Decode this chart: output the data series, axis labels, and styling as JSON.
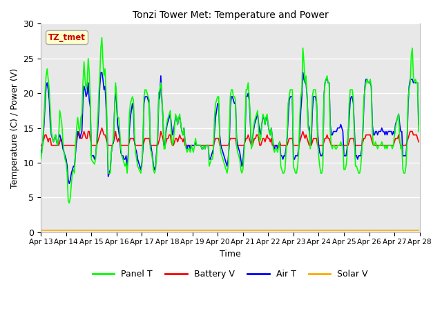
{
  "title": "Tonzi Tower Met: Temperature and Power",
  "xlabel": "Time",
  "ylabel": "Temperature (C) / Power (V)",
  "ylim": [
    0,
    30
  ],
  "xtick_labels": [
    "Apr 13",
    "Apr 14",
    "Apr 15",
    "Apr 16",
    "Apr 17",
    "Apr 18",
    "Apr 19",
    "Apr 20",
    "Apr 21",
    "Apr 22",
    "Apr 23",
    "Apr 24",
    "Apr 25",
    "Apr 26",
    "Apr 27",
    "Apr 28"
  ],
  "ytick_positions": [
    0,
    5,
    10,
    15,
    20,
    25,
    30
  ],
  "bg_color": "#e8e8e8",
  "fig_color": "#ffffff",
  "annotation_text": "TZ_tmet",
  "annotation_color": "#cc0000",
  "annotation_bg": "#ffffcc",
  "annotation_border": "#aaaaaa",
  "panel_t_color": "#00ff00",
  "battery_v_color": "#ff0000",
  "air_t_color": "#0000ff",
  "solar_v_color": "#ffaa00",
  "line_width": 1.2,
  "panel_t": [
    10.5,
    11.5,
    13.5,
    16.5,
    20.0,
    22.5,
    23.5,
    22.0,
    20.5,
    17.5,
    14.5,
    13.5,
    13.0,
    13.5,
    14.0,
    13.0,
    12.5,
    14.0,
    17.5,
    16.5,
    15.5,
    13.0,
    11.5,
    10.5,
    10.0,
    8.5,
    4.5,
    4.2,
    5.0,
    7.0,
    8.5,
    9.0,
    8.5,
    12.5,
    15.0,
    16.5,
    15.0,
    14.5,
    16.5,
    17.0,
    21.5,
    24.5,
    22.0,
    20.5,
    21.5,
    25.0,
    23.0,
    19.0,
    10.5,
    10.2,
    10.0,
    9.8,
    10.5,
    13.0,
    16.0,
    19.5,
    22.5,
    26.5,
    28.0,
    24.5,
    22.5,
    23.5,
    20.0,
    15.5,
    8.5,
    8.5,
    8.5,
    11.5,
    12.5,
    13.5,
    17.5,
    21.5,
    19.5,
    16.5,
    16.5,
    14.5,
    12.0,
    11.0,
    10.5,
    10.0,
    9.5,
    10.0,
    8.5,
    10.5,
    16.5,
    18.5,
    19.0,
    19.5,
    19.0,
    14.0,
    11.5,
    10.5,
    9.5,
    9.2,
    8.8,
    8.5,
    9.5,
    13.5,
    19.5,
    20.5,
    20.5,
    20.0,
    19.5,
    19.0,
    12.0,
    11.5,
    10.5,
    9.0,
    8.5,
    9.0,
    11.0,
    14.0,
    20.0,
    20.5,
    21.5,
    19.5,
    16.5,
    12.0,
    12.0,
    15.0,
    16.0,
    16.5,
    17.0,
    17.5,
    14.0,
    12.5,
    13.0,
    15.0,
    17.0,
    16.5,
    15.5,
    16.5,
    17.0,
    15.5,
    14.5,
    14.0,
    15.0,
    13.0,
    12.0,
    11.5,
    12.0,
    12.0,
    11.5,
    12.5,
    12.0,
    11.5,
    12.5,
    13.5,
    12.5,
    12.5,
    12.5,
    12.5,
    12.5,
    12.0,
    12.0,
    12.5,
    12.0,
    12.5,
    12.5,
    12.5,
    9.5,
    10.0,
    10.5,
    10.5,
    11.5,
    16.5,
    18.5,
    19.0,
    19.5,
    19.5,
    13.0,
    11.5,
    11.0,
    10.5,
    10.0,
    9.5,
    9.0,
    8.5,
    9.5,
    14.0,
    19.5,
    20.5,
    20.5,
    19.5,
    19.5,
    19.0,
    12.5,
    11.5,
    11.0,
    10.5,
    9.0,
    8.5,
    9.0,
    11.0,
    14.5,
    20.5,
    20.5,
    21.5,
    19.5,
    16.5,
    12.0,
    12.5,
    15.0,
    16.0,
    16.5,
    17.0,
    17.5,
    14.5,
    13.0,
    13.5,
    15.5,
    17.0,
    16.5,
    15.5,
    16.5,
    17.0,
    15.5,
    14.5,
    14.0,
    15.0,
    13.5,
    12.0,
    11.5,
    12.0,
    12.0,
    11.5,
    12.5,
    13.0,
    9.5,
    9.0,
    8.5,
    8.5,
    9.0,
    11.5,
    14.0,
    18.5,
    19.5,
    20.5,
    20.5,
    20.5,
    9.5,
    9.0,
    8.5,
    8.5,
    9.5,
    11.5,
    16.5,
    19.5,
    20.5,
    26.5,
    24.5,
    21.5,
    22.5,
    19.5,
    15.0,
    14.5,
    12.0,
    14.5,
    19.5,
    20.5,
    20.5,
    20.5,
    19.0,
    13.0,
    11.0,
    9.5,
    8.5,
    8.5,
    9.5,
    19.5,
    21.5,
    22.0,
    22.5,
    21.5,
    21.5,
    14.5,
    12.5,
    12.0,
    12.5,
    12.5,
    12.0,
    12.0,
    12.5,
    12.5,
    12.5,
    13.0,
    12.5,
    12.5,
    9.0,
    9.0,
    9.5,
    11.0,
    14.0,
    18.5,
    20.5,
    20.5,
    20.5,
    19.0,
    13.0,
    9.5,
    9.5,
    9.0,
    8.5,
    8.5,
    9.5,
    11.5,
    15.0,
    19.5,
    20.5,
    21.5,
    22.0,
    21.5,
    21.5,
    22.0,
    21.0,
    14.5,
    12.5,
    12.5,
    13.0,
    12.5,
    12.0,
    12.5,
    12.5,
    12.5,
    13.0,
    12.5,
    12.5,
    12.0,
    12.5,
    12.0,
    12.5,
    12.5,
    12.5,
    12.5,
    12.0,
    12.5,
    14.0,
    15.0,
    16.0,
    16.5,
    17.0,
    13.5,
    12.0,
    12.5,
    9.0,
    8.5,
    8.5,
    9.5,
    13.0,
    19.5,
    20.5,
    21.5,
    25.5,
    26.5,
    22.5,
    21.5,
    22.0,
    21.5,
    21.5,
    14.5
  ],
  "battery_v": [
    12.5,
    12.5,
    13.0,
    13.5,
    14.0,
    14.0,
    13.5,
    13.0,
    13.5,
    13.5,
    12.5,
    12.5,
    12.5,
    12.5,
    12.5,
    12.5,
    12.5,
    12.5,
    13.0,
    13.5,
    13.0,
    12.5,
    12.5,
    12.5,
    12.5,
    12.5,
    12.5,
    12.5,
    12.5,
    12.5,
    12.5,
    12.5,
    12.5,
    12.5,
    13.0,
    14.0,
    14.5,
    14.0,
    13.5,
    13.5,
    14.0,
    14.5,
    14.0,
    13.5,
    13.5,
    14.5,
    14.5,
    13.5,
    12.5,
    12.5,
    12.5,
    12.5,
    12.5,
    12.5,
    13.0,
    13.5,
    14.0,
    14.5,
    15.0,
    14.5,
    14.0,
    14.0,
    13.5,
    13.0,
    12.5,
    12.5,
    12.5,
    12.5,
    12.5,
    13.0,
    13.5,
    14.5,
    13.5,
    13.0,
    13.5,
    13.0,
    12.5,
    12.5,
    12.5,
    12.5,
    12.5,
    12.5,
    12.5,
    12.5,
    13.0,
    13.5,
    13.5,
    13.5,
    13.5,
    13.0,
    12.5,
    12.5,
    12.5,
    12.5,
    12.5,
    12.5,
    12.5,
    12.5,
    13.0,
    13.5,
    13.5,
    13.5,
    13.5,
    13.5,
    12.5,
    12.5,
    12.5,
    12.5,
    12.5,
    12.5,
    12.5,
    12.5,
    13.0,
    13.5,
    14.5,
    14.0,
    13.5,
    12.5,
    12.5,
    13.0,
    13.5,
    13.5,
    14.0,
    14.0,
    13.0,
    12.5,
    12.5,
    13.0,
    13.5,
    13.5,
    13.0,
    13.5,
    14.0,
    13.5,
    13.5,
    13.0,
    13.5,
    12.5,
    12.5,
    12.5,
    12.5,
    12.5,
    12.5,
    12.5,
    12.5,
    12.5,
    12.5,
    13.0,
    12.5,
    12.5,
    12.5,
    12.5,
    12.5,
    12.5,
    12.5,
    12.5,
    12.5,
    12.5,
    12.5,
    12.5,
    12.5,
    12.5,
    12.5,
    12.5,
    12.5,
    13.0,
    13.5,
    13.5,
    13.5,
    13.5,
    12.5,
    12.5,
    12.5,
    12.5,
    12.5,
    12.5,
    12.5,
    12.5,
    12.5,
    13.0,
    13.5,
    13.5,
    13.5,
    13.5,
    13.5,
    13.5,
    12.5,
    12.5,
    12.5,
    12.5,
    12.5,
    12.5,
    12.5,
    12.5,
    13.0,
    13.5,
    13.5,
    14.0,
    13.5,
    13.0,
    12.5,
    12.5,
    13.0,
    13.5,
    13.5,
    14.0,
    14.0,
    13.5,
    12.5,
    12.5,
    13.0,
    13.5,
    13.5,
    13.0,
    13.5,
    14.0,
    13.5,
    13.5,
    13.0,
    13.5,
    12.5,
    12.5,
    12.5,
    12.5,
    12.5,
    12.5,
    12.5,
    13.0,
    12.5,
    12.5,
    12.5,
    12.5,
    12.5,
    12.5,
    12.5,
    13.0,
    13.5,
    13.5,
    13.5,
    13.5,
    12.5,
    12.5,
    12.5,
    12.5,
    12.5,
    12.5,
    13.0,
    13.5,
    14.0,
    14.5,
    14.0,
    13.5,
    14.0,
    13.5,
    13.0,
    12.5,
    12.5,
    12.5,
    13.0,
    13.5,
    13.5,
    13.5,
    13.5,
    12.5,
    12.5,
    12.5,
    12.5,
    12.5,
    12.5,
    13.0,
    13.5,
    13.5,
    14.0,
    13.5,
    13.5,
    13.0,
    12.5,
    12.5,
    12.5,
    12.5,
    12.5,
    12.5,
    12.5,
    12.5,
    12.5,
    12.5,
    12.5,
    12.5,
    12.5,
    12.5,
    12.5,
    12.5,
    12.5,
    13.0,
    13.5,
    13.5,
    13.5,
    13.5,
    12.5,
    12.5,
    12.5,
    12.5,
    12.5,
    12.5,
    12.5,
    12.5,
    13.0,
    13.5,
    13.5,
    14.0,
    14.0,
    14.0,
    14.0,
    14.0,
    13.5,
    13.0,
    12.5,
    12.5,
    12.5,
    12.5,
    12.5,
    12.5,
    12.5,
    12.5,
    12.5,
    12.5,
    12.5,
    12.5,
    12.5,
    12.5,
    12.5,
    12.5,
    12.5,
    12.5,
    12.5,
    12.5,
    13.0,
    13.5,
    13.5,
    13.5,
    14.0,
    13.0,
    12.5,
    12.5,
    12.5,
    12.5,
    12.5,
    12.5,
    13.0,
    13.5,
    14.0,
    14.5,
    14.5,
    14.5,
    14.0,
    14.0,
    14.0,
    14.0,
    13.5,
    13.0
  ],
  "air_t": [
    11.5,
    12.0,
    13.0,
    15.5,
    18.5,
    21.0,
    21.5,
    20.5,
    19.0,
    15.5,
    14.0,
    13.5,
    13.0,
    13.5,
    14.0,
    13.0,
    12.5,
    13.5,
    14.0,
    13.5,
    13.0,
    12.0,
    11.5,
    11.0,
    10.5,
    9.5,
    7.5,
    7.0,
    7.5,
    8.5,
    9.0,
    9.5,
    9.5,
    11.5,
    13.5,
    14.5,
    14.0,
    13.5,
    14.0,
    14.5,
    19.0,
    21.0,
    20.5,
    19.5,
    20.0,
    21.5,
    19.0,
    18.0,
    11.0,
    11.0,
    11.0,
    10.5,
    11.0,
    12.5,
    14.5,
    17.5,
    21.0,
    23.0,
    23.0,
    22.0,
    20.5,
    21.0,
    18.0,
    14.5,
    8.0,
    8.5,
    9.0,
    11.5,
    12.5,
    13.0,
    17.5,
    21.0,
    18.5,
    15.5,
    14.5,
    13.5,
    11.5,
    11.0,
    11.0,
    10.5,
    10.5,
    11.0,
    9.5,
    11.0,
    14.5,
    16.5,
    17.5,
    18.5,
    17.5,
    13.0,
    12.0,
    11.5,
    10.5,
    10.0,
    9.5,
    9.0,
    10.0,
    12.0,
    18.5,
    19.5,
    19.5,
    19.5,
    19.0,
    18.5,
    13.0,
    12.0,
    11.0,
    9.5,
    9.0,
    9.5,
    11.5,
    13.5,
    19.0,
    19.5,
    22.5,
    19.0,
    16.5,
    12.5,
    12.5,
    14.5,
    15.5,
    16.0,
    16.5,
    17.0,
    15.5,
    14.0,
    14.5,
    15.5,
    16.5,
    16.5,
    15.5,
    16.5,
    16.5,
    15.5,
    14.5,
    14.0,
    15.0,
    13.0,
    12.5,
    12.0,
    12.5,
    12.5,
    12.0,
    12.5,
    12.5,
    12.5,
    12.5,
    13.0,
    12.5,
    12.5,
    12.5,
    12.5,
    12.5,
    12.0,
    12.0,
    12.5,
    12.0,
    12.5,
    12.5,
    12.5,
    10.5,
    10.5,
    11.0,
    11.5,
    12.0,
    14.5,
    16.5,
    17.5,
    18.5,
    18.5,
    14.0,
    12.5,
    12.0,
    11.5,
    11.0,
    10.5,
    10.0,
    9.5,
    10.5,
    12.5,
    18.0,
    19.5,
    19.5,
    19.0,
    18.5,
    18.5,
    13.5,
    12.5,
    12.0,
    11.5,
    10.5,
    9.5,
    10.0,
    12.0,
    13.5,
    19.5,
    19.5,
    20.0,
    19.0,
    16.0,
    12.5,
    13.0,
    14.5,
    15.5,
    16.0,
    16.5,
    17.0,
    15.5,
    14.5,
    14.0,
    15.5,
    16.5,
    16.5,
    15.5,
    16.5,
    16.5,
    15.5,
    14.5,
    14.0,
    15.0,
    13.5,
    12.5,
    12.0,
    12.5,
    12.5,
    12.0,
    12.5,
    13.0,
    11.0,
    11.0,
    10.5,
    11.0,
    11.0,
    12.0,
    13.5,
    16.5,
    19.0,
    19.5,
    19.5,
    19.5,
    10.5,
    10.5,
    11.0,
    11.0,
    11.0,
    12.0,
    14.0,
    17.5,
    19.5,
    23.0,
    22.0,
    21.5,
    21.5,
    19.5,
    15.5,
    15.0,
    12.5,
    13.0,
    17.5,
    19.5,
    19.5,
    19.5,
    18.5,
    14.5,
    12.5,
    11.5,
    11.0,
    11.0,
    11.5,
    19.5,
    21.5,
    22.0,
    22.0,
    21.5,
    21.5,
    15.5,
    14.0,
    14.0,
    14.5,
    14.5,
    14.5,
    14.5,
    15.0,
    15.0,
    15.0,
    15.5,
    15.0,
    14.5,
    11.0,
    11.0,
    11.0,
    12.0,
    14.0,
    16.5,
    19.0,
    19.5,
    19.5,
    18.5,
    14.5,
    11.0,
    11.0,
    10.5,
    11.0,
    11.0,
    11.0,
    12.0,
    14.5,
    18.5,
    21.0,
    22.0,
    22.0,
    21.5,
    21.5,
    21.5,
    21.0,
    15.5,
    14.0,
    14.0,
    14.5,
    14.5,
    14.0,
    14.5,
    14.5,
    14.5,
    15.0,
    14.5,
    14.5,
    14.0,
    14.5,
    14.0,
    14.5,
    14.5,
    14.5,
    14.5,
    14.0,
    14.5,
    14.0,
    15.5,
    16.0,
    16.5,
    17.0,
    15.5,
    14.5,
    14.5,
    11.0,
    11.0,
    11.0,
    11.0,
    13.0,
    18.5,
    21.0,
    22.0,
    22.0,
    22.0,
    21.5,
    21.5,
    21.5,
    21.5,
    21.5,
    15.5
  ],
  "solar_v": 0.3,
  "n_points": 360
}
